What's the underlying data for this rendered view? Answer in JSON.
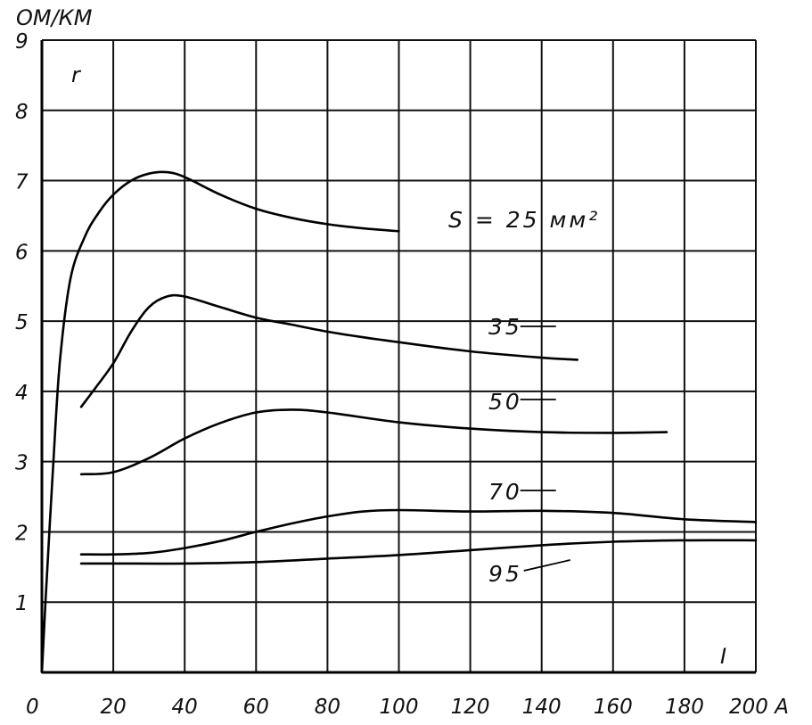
{
  "chart_data": {
    "type": "line",
    "title": "",
    "y_unit_label": "ОМ/КМ",
    "y_symbol": "r",
    "x_symbol": "I",
    "x_ticks": [
      "0",
      "20",
      "40",
      "60",
      "80",
      "100",
      "120",
      "140",
      "160",
      "180",
      "200 A"
    ],
    "y_ticks": [
      "1",
      "2",
      "3",
      "4",
      "5",
      "6",
      "7",
      "8",
      "9"
    ],
    "xlim": [
      0,
      200
    ],
    "ylim": [
      0,
      9
    ],
    "grid": true,
    "series": [
      {
        "name": "S = 25 мм²",
        "x": [
          1,
          3,
          5,
          8,
          12,
          16,
          20,
          25,
          30,
          35,
          40,
          50,
          60,
          70,
          80,
          90,
          100
        ],
        "y": [
          1.0,
          2.8,
          4.4,
          5.6,
          6.2,
          6.55,
          6.8,
          7.0,
          7.1,
          7.12,
          7.05,
          6.8,
          6.6,
          6.47,
          6.38,
          6.32,
          6.28
        ]
      },
      {
        "name": "35",
        "x": [
          11,
          15,
          20,
          25,
          30,
          35,
          40,
          50,
          60,
          70,
          80,
          90,
          100,
          120,
          140,
          150
        ],
        "y": [
          3.78,
          4.05,
          4.4,
          4.85,
          5.2,
          5.35,
          5.35,
          5.2,
          5.05,
          4.95,
          4.85,
          4.77,
          4.7,
          4.57,
          4.48,
          4.45
        ]
      },
      {
        "name": "50",
        "x": [
          11,
          20,
          30,
          40,
          50,
          60,
          70,
          80,
          100,
          120,
          140,
          160,
          175
        ],
        "y": [
          2.82,
          2.85,
          3.05,
          3.33,
          3.55,
          3.7,
          3.74,
          3.7,
          3.56,
          3.47,
          3.42,
          3.41,
          3.42
        ]
      },
      {
        "name": "70",
        "x": [
          11,
          20,
          30,
          40,
          50,
          60,
          70,
          80,
          90,
          100,
          120,
          140,
          160,
          180,
          200
        ],
        "y": [
          1.68,
          1.68,
          1.7,
          1.77,
          1.87,
          2.0,
          2.12,
          2.22,
          2.29,
          2.31,
          2.29,
          2.3,
          2.27,
          2.18,
          2.14
        ]
      },
      {
        "name": "95",
        "x": [
          11,
          20,
          40,
          60,
          80,
          100,
          120,
          140,
          160,
          180,
          200
        ],
        "y": [
          1.55,
          1.55,
          1.55,
          1.57,
          1.62,
          1.67,
          1.74,
          1.81,
          1.86,
          1.88,
          1.88
        ]
      }
    ]
  }
}
